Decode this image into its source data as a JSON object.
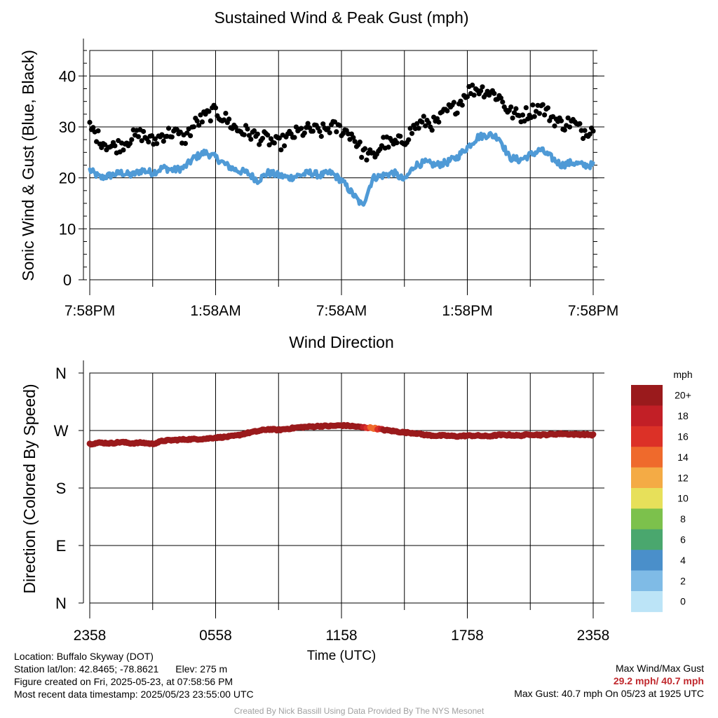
{
  "chart_data": [
    {
      "type": "line",
      "title": "Sustained Wind & Peak Gust (mph)",
      "ylabel": "Sonic Wind & Gust (Blue, Black)",
      "xlabel": "",
      "x_tick_labels": [
        "7:58PM",
        "1:58AM",
        "7:58AM",
        "1:58PM",
        "7:58PM"
      ],
      "x_range_hours": [
        0,
        24
      ],
      "ylim": [
        0,
        45
      ],
      "y_ticks": [
        0,
        10,
        20,
        30,
        40
      ],
      "grid": true,
      "series": [
        {
          "color": "#4f9ad6",
          "style": "line",
          "x": [
            0,
            0.5,
            1,
            1.5,
            2,
            2.5,
            3,
            3.5,
            4,
            4.5,
            5,
            5.5,
            6,
            6.5,
            7,
            7.5,
            8,
            8.5,
            9,
            9.5,
            10,
            10.5,
            11,
            11.5,
            12,
            12.5,
            13,
            13.5,
            14,
            14.5,
            15,
            15.5,
            16,
            16.5,
            17,
            17.5,
            18,
            18.5,
            19,
            19.5,
            20,
            20.5,
            21,
            21.5,
            22,
            22.5,
            23,
            23.5,
            24
          ],
          "values": [
            21.5,
            20,
            20.5,
            21,
            20.5,
            21.5,
            21,
            22,
            21.5,
            22,
            24,
            25,
            24,
            22.5,
            21.5,
            21,
            19.5,
            21,
            20.5,
            20,
            20.5,
            21,
            20.5,
            21,
            19.5,
            17,
            14.5,
            20,
            20.5,
            21,
            19.5,
            22.5,
            23,
            22.5,
            23,
            24,
            26,
            28,
            28.5,
            28,
            24,
            23.5,
            24.5,
            25.5,
            24,
            22.5,
            23,
            22.5,
            22.5
          ]
        },
        {
          "color": "#000000",
          "style": "scatter",
          "x": [
            0,
            0.5,
            1,
            1.5,
            2,
            2.5,
            3,
            3.5,
            4,
            4.5,
            5,
            5.5,
            6,
            6.5,
            7,
            7.5,
            8,
            8.5,
            9,
            9.5,
            10,
            10.5,
            11,
            11.5,
            12,
            12.5,
            13,
            13.5,
            14,
            14.5,
            15,
            15.5,
            16,
            16.5,
            17,
            17.5,
            18,
            18.5,
            19,
            19.5,
            20,
            20.5,
            21,
            21.5,
            22,
            22.5,
            23,
            23.5,
            24
          ],
          "values": [
            30,
            27.5,
            26,
            26.5,
            28,
            28.5,
            27,
            28.5,
            29,
            27.5,
            30.5,
            32,
            33,
            31.5,
            29.5,
            29,
            28,
            27.5,
            26.5,
            28,
            29,
            29.5,
            29,
            30,
            29.5,
            28.5,
            25,
            24,
            27,
            26.5,
            27.5,
            30,
            31,
            30.5,
            33,
            34,
            37,
            37.5,
            37,
            36,
            33,
            32,
            33,
            34,
            32,
            30.5,
            31,
            29,
            30
          ]
        }
      ]
    },
    {
      "type": "scatter",
      "title": "Wind Direction",
      "ylabel": "Direction (Colored By Speed)",
      "xlabel": "Time (UTC)",
      "x_tick_labels": [
        "2358",
        "0558",
        "1158",
        "1758",
        "2358"
      ],
      "x_range_hours": [
        0,
        24
      ],
      "ylim_degrees": [
        0,
        360
      ],
      "y_tick_labels": [
        "N",
        "W",
        "S",
        "E",
        "N"
      ],
      "grid": true,
      "series": [
        {
          "style": "scatter",
          "x": [
            0,
            0.5,
            1,
            1.5,
            2,
            2.5,
            3,
            3.5,
            4,
            4.5,
            5,
            5.5,
            6,
            6.5,
            7,
            7.5,
            8,
            8.5,
            9,
            9.5,
            10,
            10.5,
            11,
            11.5,
            12,
            12.5,
            13,
            13.5,
            14,
            14.5,
            15,
            15.5,
            16,
            16.5,
            17,
            17.5,
            18,
            18.5,
            19,
            19.5,
            20,
            20.5,
            21,
            21.5,
            22,
            22.5,
            23,
            23.5,
            24
          ],
          "values": [
            249,
            251,
            250,
            252,
            250,
            251,
            249,
            254,
            255,
            256,
            256.5,
            257,
            259,
            260,
            262,
            266,
            269,
            272,
            271,
            273,
            275,
            276,
            277,
            277,
            278,
            277,
            275,
            274,
            271,
            269,
            267,
            266,
            263,
            262,
            262,
            261,
            262,
            262,
            261,
            263,
            263,
            262,
            264,
            263,
            264,
            265,
            264,
            264,
            263
          ],
          "speeds": [
            20,
            20,
            20,
            20,
            20,
            20,
            20,
            20,
            20,
            20,
            20,
            20,
            20,
            20,
            20,
            20,
            20,
            20,
            20,
            20,
            20,
            20,
            20,
            20,
            20,
            20,
            20,
            14,
            20,
            20,
            20,
            20,
            20,
            20,
            20,
            20,
            20,
            20,
            20,
            20,
            20,
            20,
            20,
            20,
            20,
            20,
            20,
            20,
            20
          ]
        }
      ],
      "legend": {
        "title": "mph",
        "placement": "right",
        "levels": [
          "0",
          "2",
          "4",
          "6",
          "8",
          "10",
          "12",
          "14",
          "16",
          "18",
          "20+"
        ],
        "colors": [
          "#bce4f7",
          "#7fbbe6",
          "#4a8fca",
          "#4aa76e",
          "#7cc14c",
          "#e7e05a",
          "#f4ab45",
          "#ef6a2c",
          "#dc3127",
          "#c21f26",
          "#9a1a1c"
        ]
      }
    }
  ],
  "footer": {
    "location": "Location: Buffalo Skyway (DOT)",
    "station_latlon": "Station lat/lon: 42.8465; -78.8621",
    "elevation": "Elev: 275 m",
    "figure_created": "Figure created on Fri, 2025-05-23, at 07:58:56 PM",
    "most_recent": "Most recent data timestamp: 2025/05/23 23:55:00 UTC",
    "max_label": "Max Wind/Max Gust",
    "max_values": "29.2 mph/ 40.7 mph",
    "max_gust_text": "Max Gust: 40.7 mph On 05/23 at 1925 UTC",
    "credit": "Created By Nick Bassill Using Data Provided By The NYS Mesonet"
  }
}
